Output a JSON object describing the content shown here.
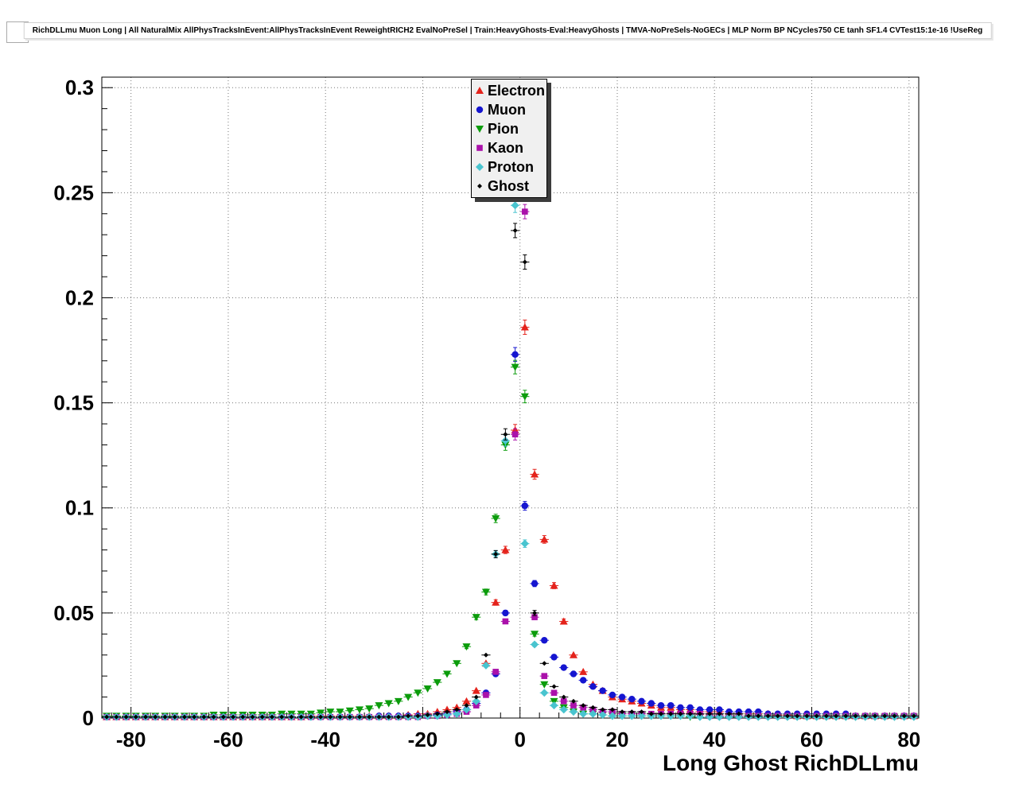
{
  "header": {
    "title": "RichDLLmu Muon Long | All NaturalMix AllPhysTracksInEvent:AllPhysTracksInEvent ReweightRICH2 EvalNoPreSel | Train:HeavyGhosts-Eval:HeavyGhosts | TMVA-NoPreSels-NoGECs | MLP Norm BP NCycles750 CE tanh SF1.4 CVTest15:1e-16 !UseReg"
  },
  "chart_data": {
    "type": "scatter",
    "title": "RichDLLmu Muon Long | All NaturalMix AllPhysTracksInEvent:AllPhysTracksInEvent ReweightRICH2 EvalNoPreSel | Train:HeavyGhosts-Eval:HeavyGhosts | TMVA-NoPreSels-NoGECs | MLP Norm BP NCycles750 CE tanh SF1.4 CVTest15:1e-16 !UseReg",
    "xlabel": "Long Ghost RichDLLmu",
    "ylabel": "",
    "xlim": [
      -86,
      82
    ],
    "ylim": [
      0,
      0.305
    ],
    "grid": true,
    "grid_style": "dotted",
    "legend_position": "top-center",
    "x_ticks": [
      -80,
      -60,
      -40,
      -20,
      0,
      20,
      40,
      60,
      80
    ],
    "x_tick_labels": [
      "-80",
      "-60",
      "-40",
      "-20",
      "0",
      "20",
      "40",
      "60",
      "80"
    ],
    "y_ticks": [
      0,
      0.05,
      0.1,
      0.15,
      0.2,
      0.25,
      0.3
    ],
    "y_tick_labels": [
      "0",
      "0.05",
      "0.1",
      "0.15",
      "0.2",
      "0.25",
      "0.3"
    ],
    "x_start": -85,
    "x_step": 2,
    "series": [
      {
        "name": "Electron",
        "color": "#e4231c",
        "marker": "triangle-up",
        "values": [
          0.0005,
          0.0005,
          0.0005,
          0.0005,
          0.0005,
          0.0005,
          0.0005,
          0.0005,
          0.0005,
          0.0005,
          0.0005,
          0.0005,
          0.0005,
          0.0005,
          0.0005,
          0.0005,
          0.0005,
          0.0005,
          0.0005,
          0.0005,
          0.0005,
          0.001,
          0.001,
          0.001,
          0.001,
          0.001,
          0.001,
          0.001,
          0.001,
          0.001,
          0.001,
          0.0015,
          0.002,
          0.002,
          0.003,
          0.004,
          0.005,
          0.008,
          0.013,
          0.026,
          0.055,
          0.08,
          0.137,
          0.186,
          0.116,
          0.085,
          0.063,
          0.046,
          0.03,
          0.022,
          0.016,
          0.013,
          0.01,
          0.009,
          0.008,
          0.007,
          0.006,
          0.005,
          0.005,
          0.004,
          0.004,
          0.003,
          0.003,
          0.003,
          0.002,
          0.002,
          0.002,
          0.002,
          0.002,
          0.0015,
          0.0015,
          0.001,
          0.001,
          0.001,
          0.001,
          0.001,
          0.001,
          0.001,
          0.001,
          0.001,
          0.001,
          0.001,
          0.001,
          0.001
        ]
      },
      {
        "name": "Muon",
        "color": "#1515d0",
        "marker": "circle",
        "values": [
          0.0005,
          0.0005,
          0.0005,
          0.0005,
          0.0005,
          0.0005,
          0.0005,
          0.0005,
          0.0005,
          0.0005,
          0.0005,
          0.0005,
          0.0005,
          0.0005,
          0.0005,
          0.0005,
          0.0005,
          0.0005,
          0.0005,
          0.0005,
          0.0005,
          0.0005,
          0.0005,
          0.0005,
          0.0005,
          0.0005,
          0.0005,
          0.0005,
          0.001,
          0.001,
          0.001,
          0.001,
          0.001,
          0.001,
          0.0015,
          0.002,
          0.003,
          0.004,
          0.007,
          0.012,
          0.021,
          0.05,
          0.173,
          0.101,
          0.064,
          0.037,
          0.029,
          0.024,
          0.021,
          0.018,
          0.015,
          0.013,
          0.011,
          0.01,
          0.009,
          0.008,
          0.007,
          0.006,
          0.006,
          0.005,
          0.005,
          0.004,
          0.004,
          0.004,
          0.003,
          0.003,
          0.003,
          0.003,
          0.002,
          0.002,
          0.002,
          0.002,
          0.002,
          0.002,
          0.002,
          0.002,
          0.002,
          0.001,
          0.001,
          0.001,
          0.001,
          0.001,
          0.001,
          0.001
        ]
      },
      {
        "name": "Pion",
        "color": "#0b9c0b",
        "marker": "triangle-down",
        "values": [
          0.001,
          0.001,
          0.001,
          0.001,
          0.001,
          0.001,
          0.001,
          0.001,
          0.001,
          0.001,
          0.001,
          0.0015,
          0.0015,
          0.0015,
          0.0015,
          0.0015,
          0.0015,
          0.0015,
          0.002,
          0.002,
          0.002,
          0.002,
          0.0025,
          0.003,
          0.003,
          0.0035,
          0.004,
          0.0045,
          0.006,
          0.007,
          0.008,
          0.01,
          0.012,
          0.014,
          0.017,
          0.021,
          0.026,
          0.034,
          0.048,
          0.06,
          0.095,
          0.13,
          0.167,
          0.153,
          0.04,
          0.016,
          0.008,
          0.005,
          0.003,
          0.002,
          0.002,
          0.0015,
          0.001,
          0.001,
          0.001,
          0.001,
          0.001,
          0.001,
          0.001,
          0.001,
          0.0005,
          0.0005,
          0.0005,
          0.0005,
          0.0005,
          0.0005,
          0.0005,
          0.0005,
          0.0005,
          0.0005,
          0.0005,
          0.0005,
          0.0005,
          0.0005,
          0.0005,
          0.0005,
          0.0005,
          0.0005,
          0.0005,
          0.0005,
          0.0005,
          0.0005,
          0.0005,
          0.0005
        ]
      },
      {
        "name": "Kaon",
        "color": "#aa11aa",
        "marker": "square",
        "values": [
          0.0005,
          0.0005,
          0.0005,
          0.0005,
          0.0005,
          0.0005,
          0.0005,
          0.0005,
          0.0005,
          0.0005,
          0.0005,
          0.0005,
          0.0005,
          0.0005,
          0.0005,
          0.0005,
          0.0005,
          0.0005,
          0.0005,
          0.0005,
          0.0005,
          0.0005,
          0.0005,
          0.0005,
          0.0005,
          0.0005,
          0.0005,
          0.0005,
          0.0005,
          0.0005,
          0.0005,
          0.0005,
          0.0005,
          0.001,
          0.001,
          0.0015,
          0.002,
          0.003,
          0.006,
          0.011,
          0.022,
          0.046,
          0.135,
          0.241,
          0.048,
          0.02,
          0.012,
          0.008,
          0.006,
          0.005,
          0.004,
          0.003,
          0.003,
          0.002,
          0.002,
          0.002,
          0.002,
          0.002,
          0.002,
          0.002,
          0.002,
          0.002,
          0.001,
          0.001,
          0.001,
          0.001,
          0.001,
          0.001,
          0.001,
          0.001,
          0.001,
          0.001,
          0.001,
          0.001,
          0.001,
          0.001,
          0.001,
          0.001,
          0.001,
          0.001,
          0.001,
          0.001,
          0.001,
          0.001
        ]
      },
      {
        "name": "Proton",
        "color": "#49c4cf",
        "marker": "diamond",
        "values": [
          0.0005,
          0.0005,
          0.0005,
          0.0005,
          0.0005,
          0.0005,
          0.0005,
          0.0005,
          0.0005,
          0.0005,
          0.0005,
          0.0005,
          0.0005,
          0.0005,
          0.0005,
          0.0005,
          0.0005,
          0.0005,
          0.0005,
          0.0005,
          0.0005,
          0.0005,
          0.0005,
          0.0005,
          0.0005,
          0.0005,
          0.0005,
          0.0005,
          0.0005,
          0.0005,
          0.0005,
          0.0005,
          0.0005,
          0.001,
          0.001,
          0.0015,
          0.002,
          0.004,
          0.008,
          0.025,
          0.078,
          0.132,
          0.244,
          0.083,
          0.035,
          0.012,
          0.006,
          0.004,
          0.003,
          0.002,
          0.002,
          0.0015,
          0.001,
          0.001,
          0.001,
          0.001,
          0.001,
          0.001,
          0.001,
          0.001,
          0.001,
          0.0005,
          0.0005,
          0.0005,
          0.0005,
          0.0005,
          0.0005,
          0.0005,
          0.0005,
          0.0005,
          0.0005,
          0.0005,
          0.0005,
          0.0005,
          0.0005,
          0.0005,
          0.0005,
          0.0005,
          0.0005,
          0.0005,
          0.0005,
          0.0005,
          0.0005,
          0.0005
        ]
      },
      {
        "name": "Ghost",
        "color": "#000000",
        "marker": "small-diamond",
        "values": [
          0.0005,
          0.0005,
          0.0005,
          0.0005,
          0.0005,
          0.0005,
          0.0005,
          0.0005,
          0.0005,
          0.0005,
          0.0005,
          0.0005,
          0.0005,
          0.0005,
          0.0005,
          0.0005,
          0.0005,
          0.0005,
          0.0005,
          0.0005,
          0.0005,
          0.0005,
          0.0005,
          0.0005,
          0.0005,
          0.0005,
          0.0005,
          0.0005,
          0.0005,
          0.0005,
          0.0005,
          0.001,
          0.001,
          0.0015,
          0.002,
          0.003,
          0.004,
          0.006,
          0.01,
          0.03,
          0.078,
          0.135,
          0.232,
          0.217,
          0.05,
          0.026,
          0.015,
          0.01,
          0.008,
          0.006,
          0.005,
          0.004,
          0.004,
          0.003,
          0.003,
          0.003,
          0.002,
          0.002,
          0.002,
          0.002,
          0.002,
          0.002,
          0.002,
          0.002,
          0.002,
          0.002,
          0.001,
          0.001,
          0.001,
          0.001,
          0.001,
          0.001,
          0.001,
          0.001,
          0.001,
          0.001,
          0.001,
          0.001,
          0.001,
          0.001,
          0.001,
          0.001,
          0.001,
          0.001
        ]
      }
    ]
  }
}
